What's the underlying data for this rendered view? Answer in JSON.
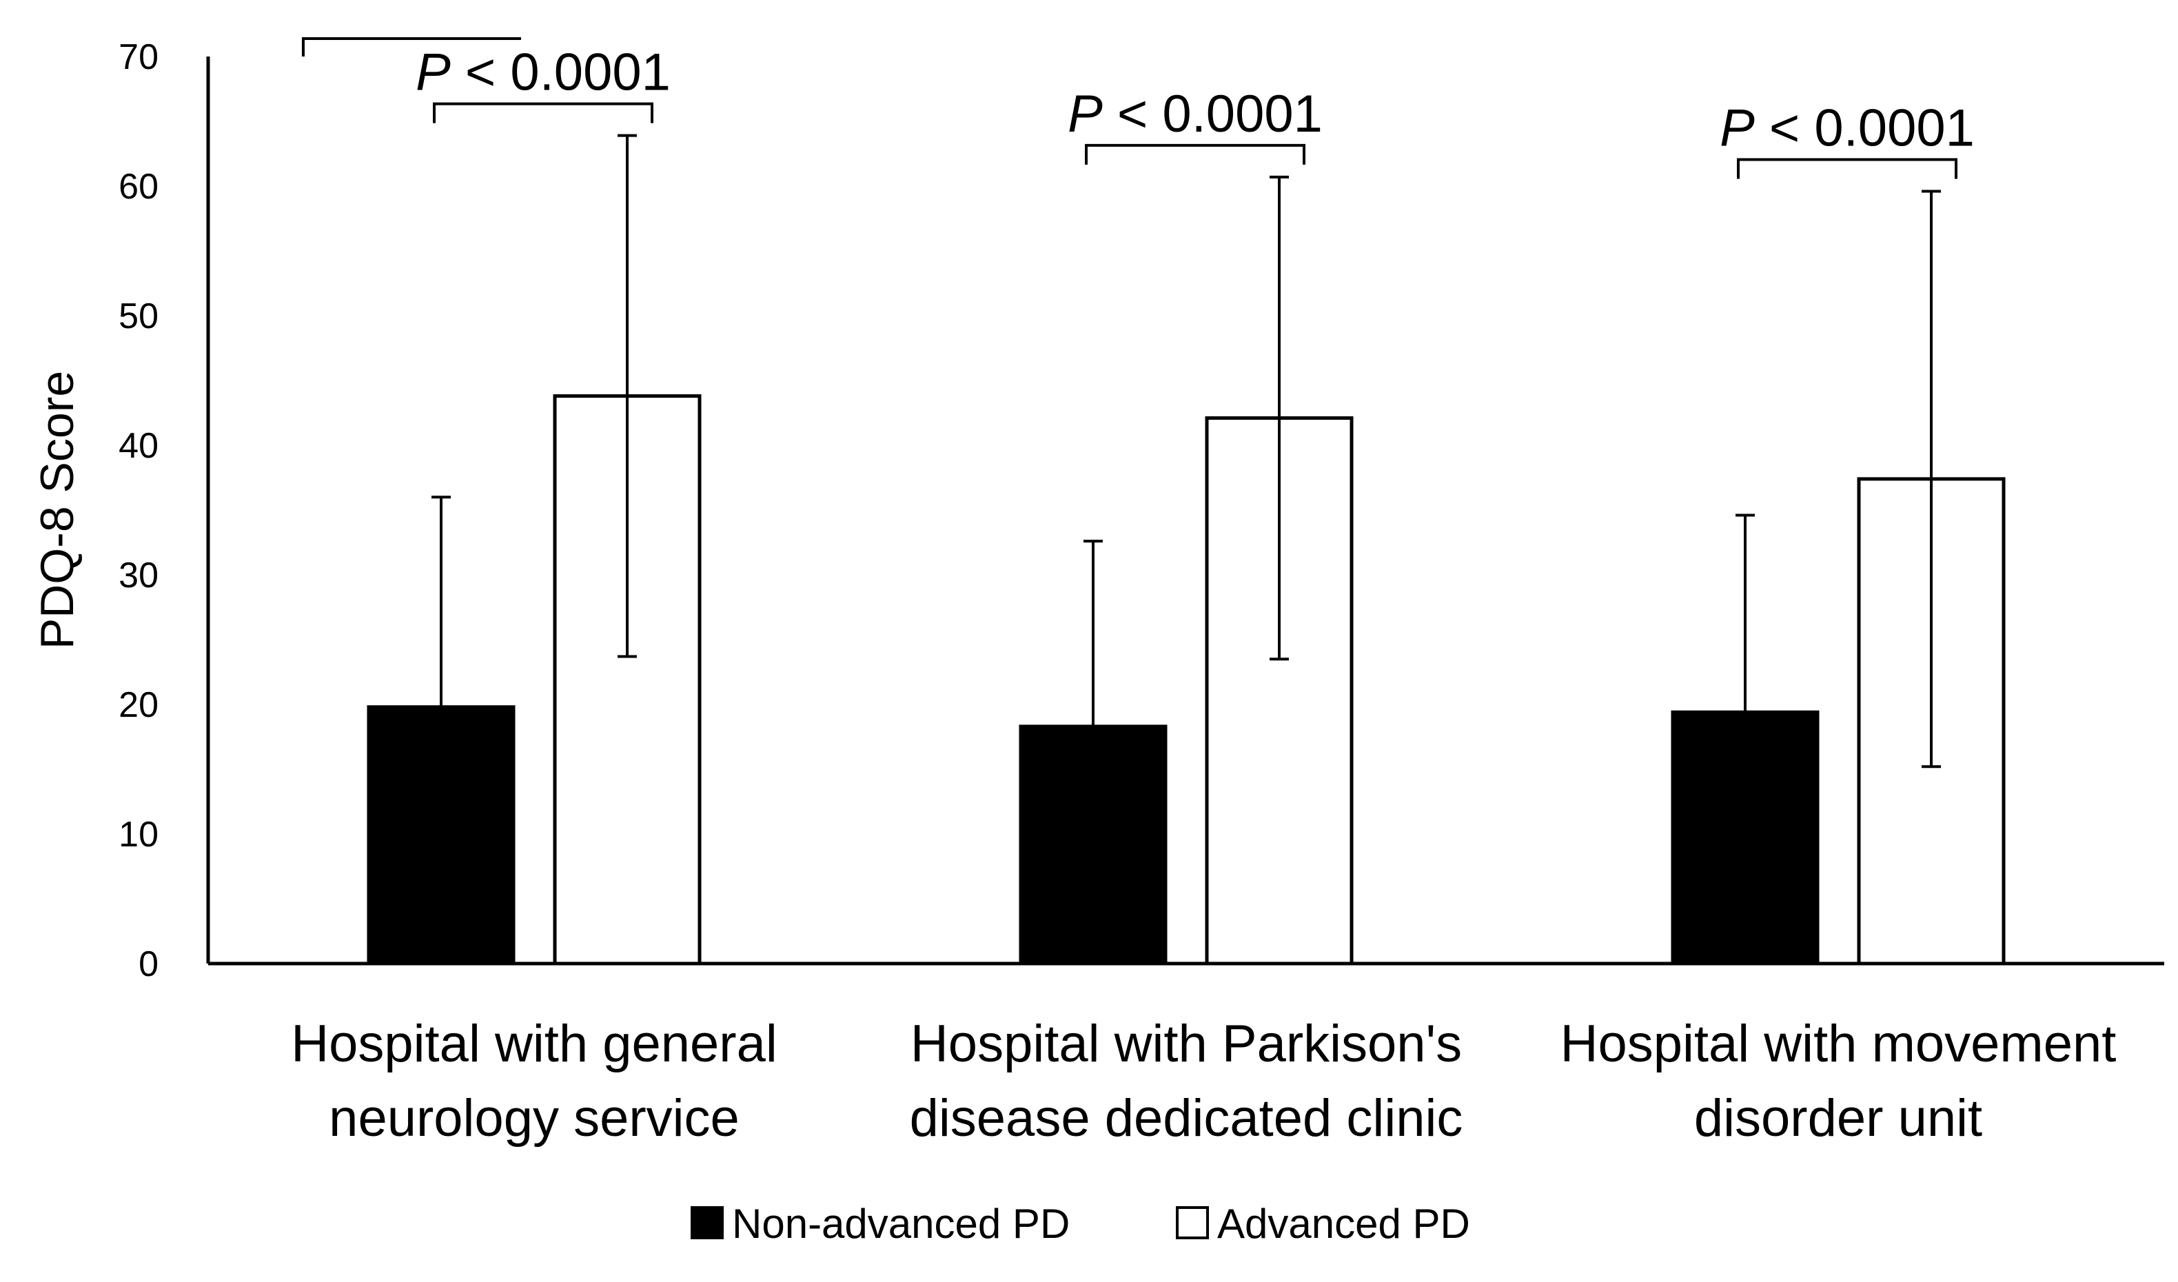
{
  "chart_data": {
    "type": "bar",
    "title": "",
    "xlabel": "",
    "ylabel": "PDQ-8 Score",
    "ylim": [
      0,
      70
    ],
    "yticks": [
      0,
      10,
      20,
      30,
      40,
      50,
      60,
      70
    ],
    "grid": false,
    "legend_position": "bottom-center",
    "categories": [
      [
        "Hospital with general",
        "neurology service"
      ],
      [
        "Hospital with Parkison's",
        "disease dedicated clinic"
      ],
      [
        "Hospital with movement",
        "disorder unit"
      ]
    ],
    "series": [
      {
        "name": "Non-advanced PD",
        "fill": "#000000",
        "values": [
          19.8,
          18.3,
          19.4
        ],
        "error": [
          16.2,
          14.3,
          15.2
        ]
      },
      {
        "name": "Advanced PD",
        "fill": "#ffffff",
        "values": [
          43.8,
          42.1,
          37.4
        ],
        "error": [
          20.1,
          18.6,
          22.2
        ]
      }
    ],
    "annotations": [
      {
        "category": 0,
        "italic": "P",
        "text": " < 0.0001"
      },
      {
        "category": 1,
        "italic": "P",
        "text": " < 0.0001"
      },
      {
        "category": 2,
        "italic": "P",
        "text": " < 0.0001"
      }
    ]
  },
  "colors": {
    "axis": "#000000",
    "bar_stroke": "#000000",
    "background": "#ffffff"
  }
}
